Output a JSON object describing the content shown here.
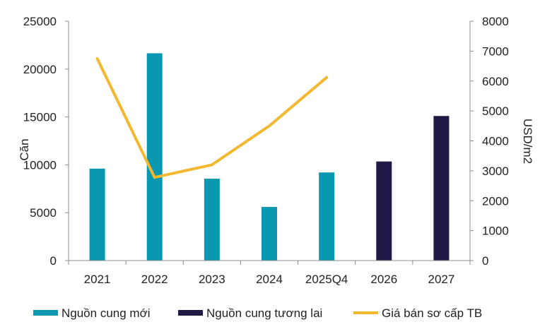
{
  "chart_data": {
    "type": "bar",
    "categories": [
      "2021",
      "2022",
      "2023",
      "2024",
      "2025Q4",
      "2026",
      "2027"
    ],
    "series": [
      {
        "name": "Nguồn cung mới",
        "type": "bar",
        "axis": "left",
        "color": "#0A97B0",
        "values": [
          9600,
          21650,
          8550,
          5600,
          9200,
          null,
          null
        ]
      },
      {
        "name": "Nguồn cung tương lai",
        "type": "bar",
        "axis": "left",
        "color": "#1F1A45",
        "values": [
          null,
          null,
          null,
          null,
          null,
          10350,
          15100
        ]
      },
      {
        "name": "Giá bán sơ cấp  TB",
        "type": "line",
        "axis": "right",
        "color": "#F2B830",
        "values": [
          6750,
          2780,
          3200,
          4500,
          6120,
          null,
          null
        ]
      }
    ],
    "ylabel": "Căn",
    "y2label": "USD/m2",
    "ylim": [
      0,
      25000
    ],
    "y2lim": [
      0,
      8000
    ],
    "yticks": [
      "0",
      "5000",
      "10000",
      "15000",
      "20000",
      "25000"
    ],
    "y2ticks": [
      "0",
      "1000",
      "2000",
      "3000",
      "4000",
      "5000",
      "6000",
      "7000",
      "8000"
    ],
    "legend_position": "bottom",
    "grid": false
  }
}
